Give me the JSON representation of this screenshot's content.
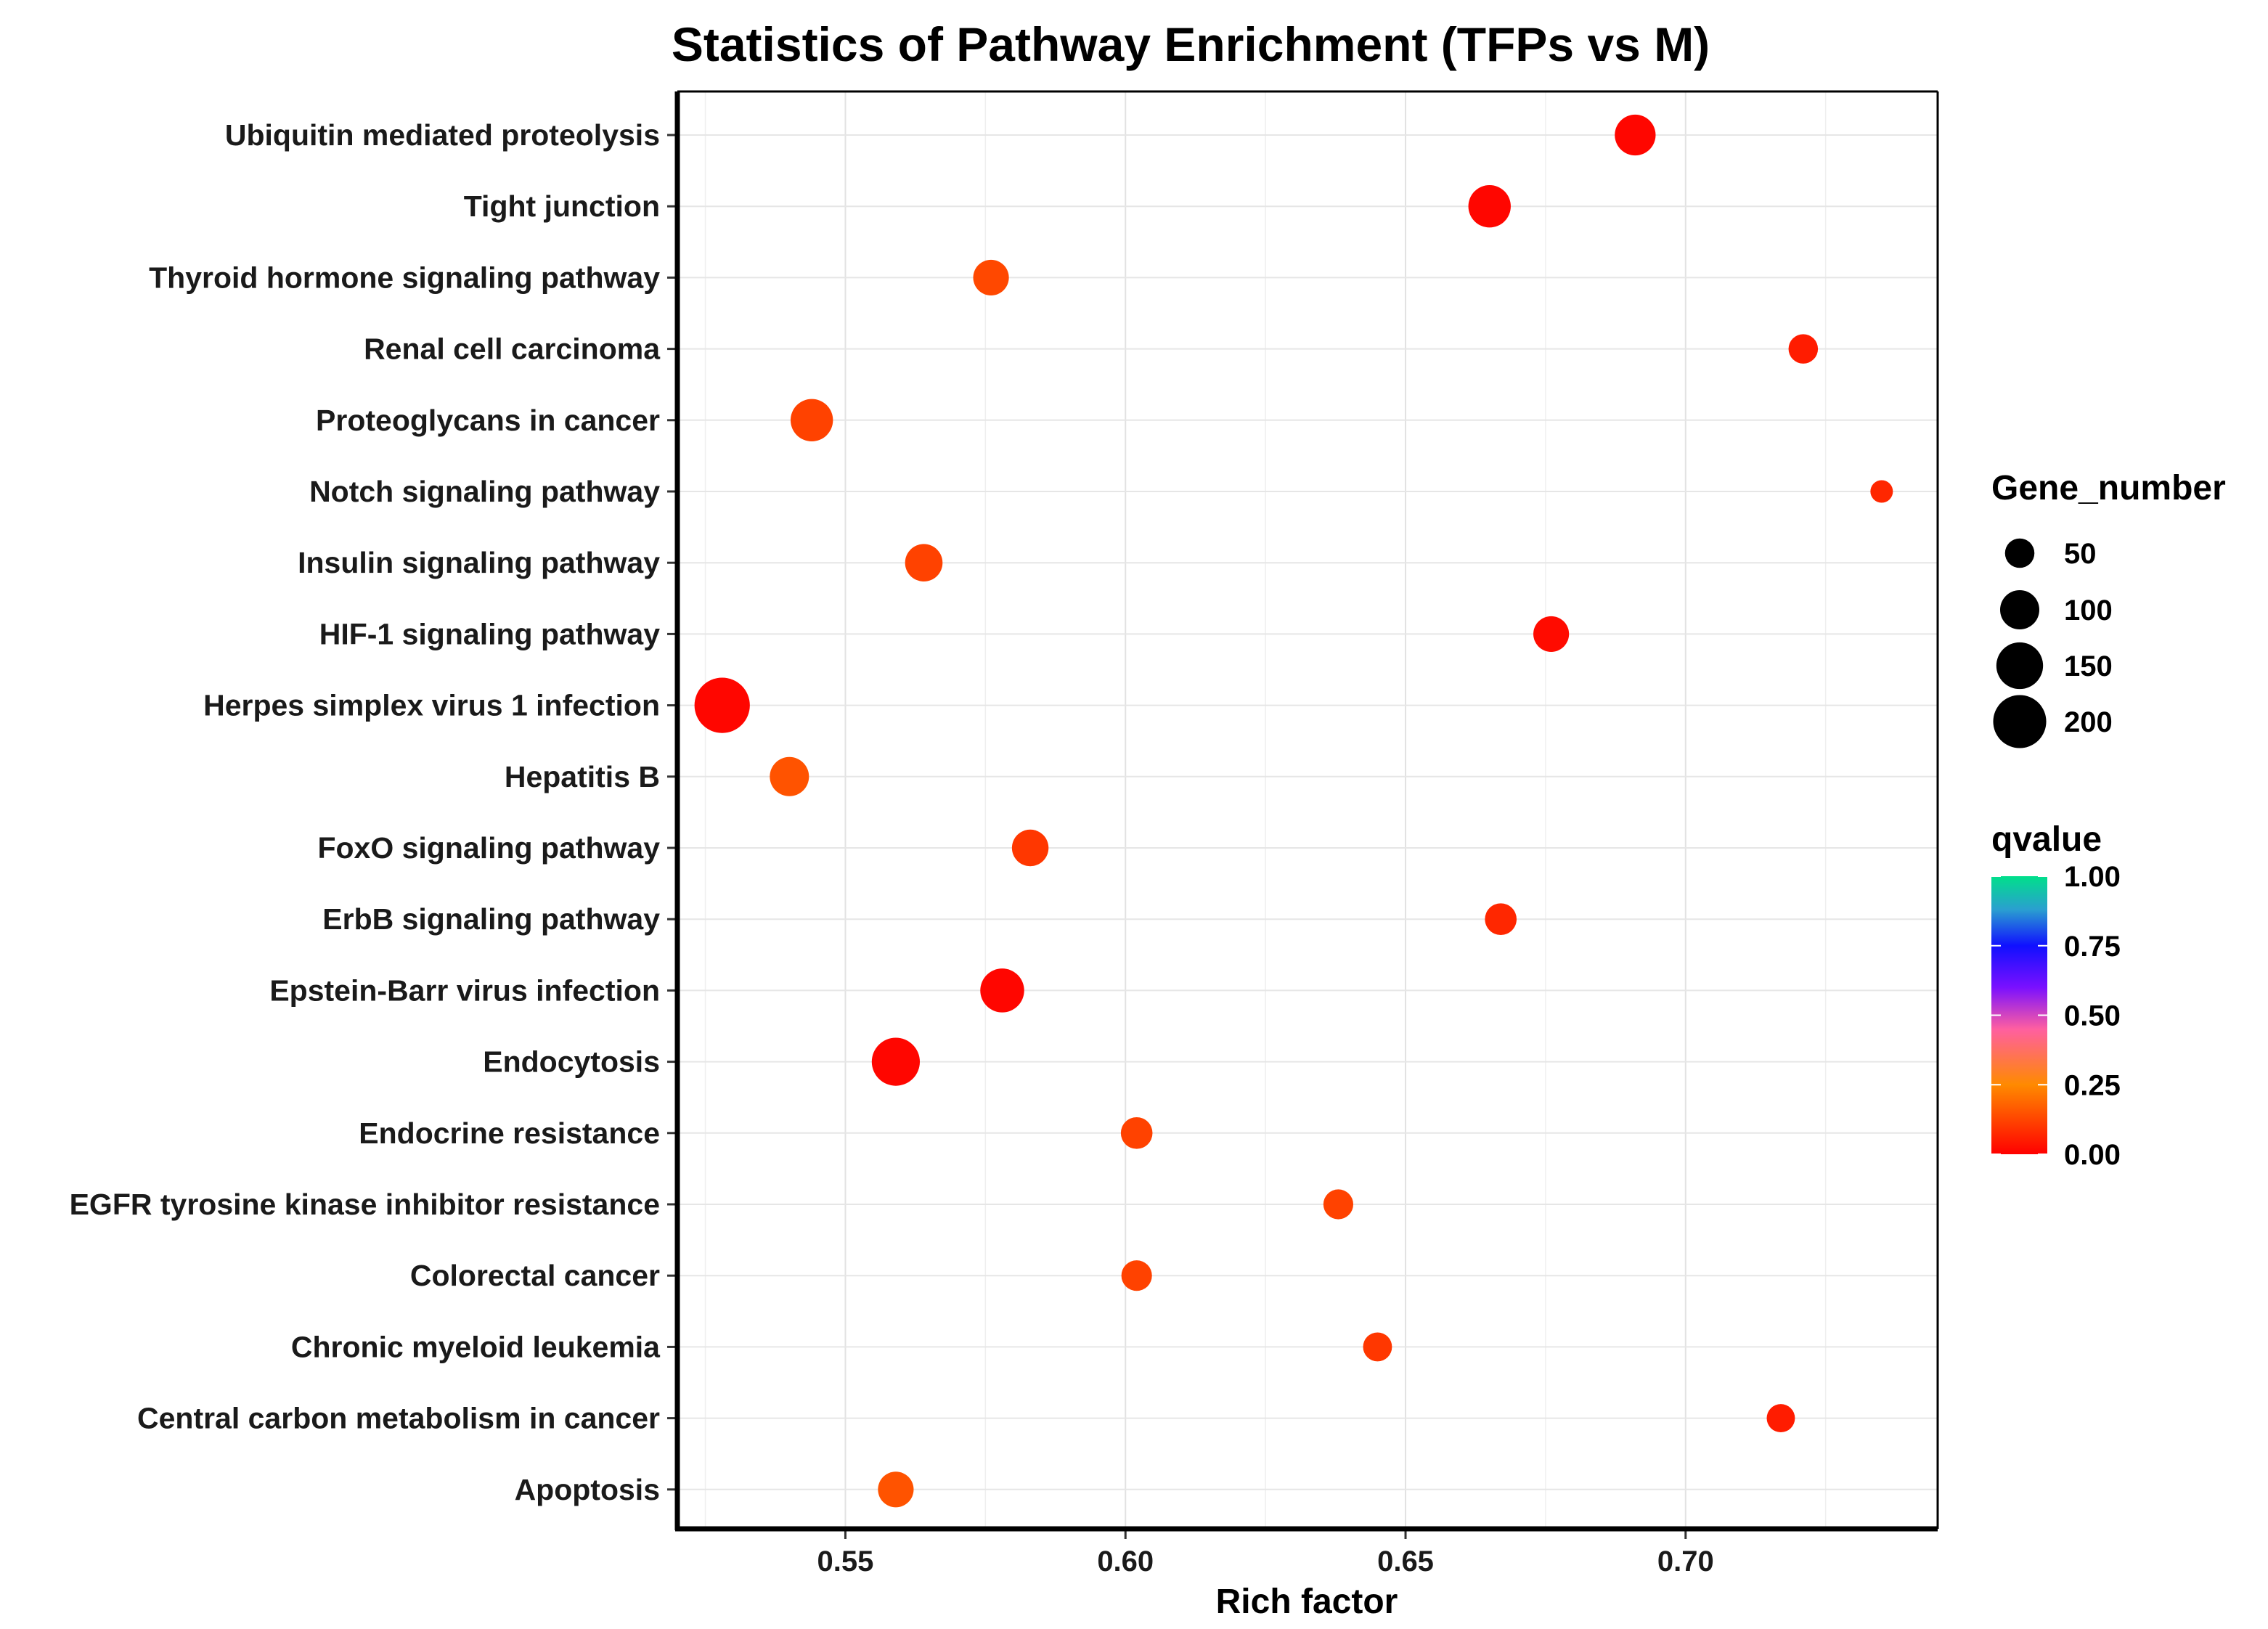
{
  "chart_data": {
    "type": "scatter",
    "title": "Statistics of Pathway Enrichment (TFPs vs M)",
    "xlabel": "Rich factor",
    "ylabel": "",
    "xlim": [
      0.52,
      0.745
    ],
    "xticks": [
      "0.55",
      "0.60",
      "0.65",
      "0.70"
    ],
    "xtick_values": [
      0.55,
      0.6,
      0.65,
      0.7
    ],
    "grid": true,
    "points": [
      {
        "pathway": "Ubiquitin mediated proteolysis",
        "rich_factor": 0.691,
        "gene_number": 110,
        "qvalue": 0.01
      },
      {
        "pathway": "Tight junction",
        "rich_factor": 0.665,
        "gene_number": 120,
        "qvalue": 0.01
      },
      {
        "pathway": "Thyroid hormone signaling pathway",
        "rich_factor": 0.576,
        "gene_number": 80,
        "qvalue": 0.13
      },
      {
        "pathway": "Renal cell carcinoma",
        "rich_factor": 0.721,
        "gene_number": 50,
        "qvalue": 0.05
      },
      {
        "pathway": "Proteoglycans in cancer",
        "rich_factor": 0.544,
        "gene_number": 120,
        "qvalue": 0.12
      },
      {
        "pathway": "Notch signaling pathway",
        "rich_factor": 0.735,
        "gene_number": 25,
        "qvalue": 0.07
      },
      {
        "pathway": "Insulin signaling pathway",
        "rich_factor": 0.564,
        "gene_number": 90,
        "qvalue": 0.12
      },
      {
        "pathway": "HIF-1 signaling pathway",
        "rich_factor": 0.676,
        "gene_number": 80,
        "qvalue": 0.02
      },
      {
        "pathway": "Herpes simplex virus 1 infection",
        "rich_factor": 0.528,
        "gene_number": 220,
        "qvalue": 0.01
      },
      {
        "pathway": "Hepatitis B",
        "rich_factor": 0.54,
        "gene_number": 100,
        "qvalue": 0.15
      },
      {
        "pathway": "FoxO signaling pathway",
        "rich_factor": 0.583,
        "gene_number": 85,
        "qvalue": 0.1
      },
      {
        "pathway": "ErbB signaling pathway",
        "rich_factor": 0.667,
        "gene_number": 60,
        "qvalue": 0.07
      },
      {
        "pathway": "Epstein-Barr virus infection",
        "rich_factor": 0.578,
        "gene_number": 130,
        "qvalue": 0.01
      },
      {
        "pathway": "Endocytosis",
        "rich_factor": 0.559,
        "gene_number": 160,
        "qvalue": 0.01
      },
      {
        "pathway": "Endocrine resistance",
        "rich_factor": 0.602,
        "gene_number": 60,
        "qvalue": 0.12
      },
      {
        "pathway": "EGFR tyrosine kinase inhibitor resistance",
        "rich_factor": 0.638,
        "gene_number": 52,
        "qvalue": 0.12
      },
      {
        "pathway": "Colorectal cancer",
        "rich_factor": 0.602,
        "gene_number": 55,
        "qvalue": 0.12
      },
      {
        "pathway": "Chronic myeloid leukemia",
        "rich_factor": 0.645,
        "gene_number": 48,
        "qvalue": 0.1
      },
      {
        "pathway": "Central carbon metabolism in cancer",
        "rich_factor": 0.717,
        "gene_number": 45,
        "qvalue": 0.05
      },
      {
        "pathway": "Apoptosis",
        "rich_factor": 0.559,
        "gene_number": 80,
        "qvalue": 0.15
      }
    ],
    "size_legend": {
      "title": "Gene_number",
      "entries": [
        {
          "label": "50",
          "value": 50
        },
        {
          "label": "100",
          "value": 100
        },
        {
          "label": "150",
          "value": 150
        },
        {
          "label": "200",
          "value": 200
        }
      ]
    },
    "color_legend": {
      "title": "qvalue",
      "ticks": [
        {
          "label": "1.00",
          "value": 1.0
        },
        {
          "label": "0.75",
          "value": 0.75
        },
        {
          "label": "0.50",
          "value": 0.5
        },
        {
          "label": "0.25",
          "value": 0.25
        },
        {
          "label": "0.00",
          "value": 0.0
        }
      ],
      "colors": [
        "#ff0000",
        "#ff8a00",
        "#ff5fa0",
        "#6a00ff",
        "#1010ff",
        "#2a9fd0",
        "#00e08a"
      ]
    }
  }
}
